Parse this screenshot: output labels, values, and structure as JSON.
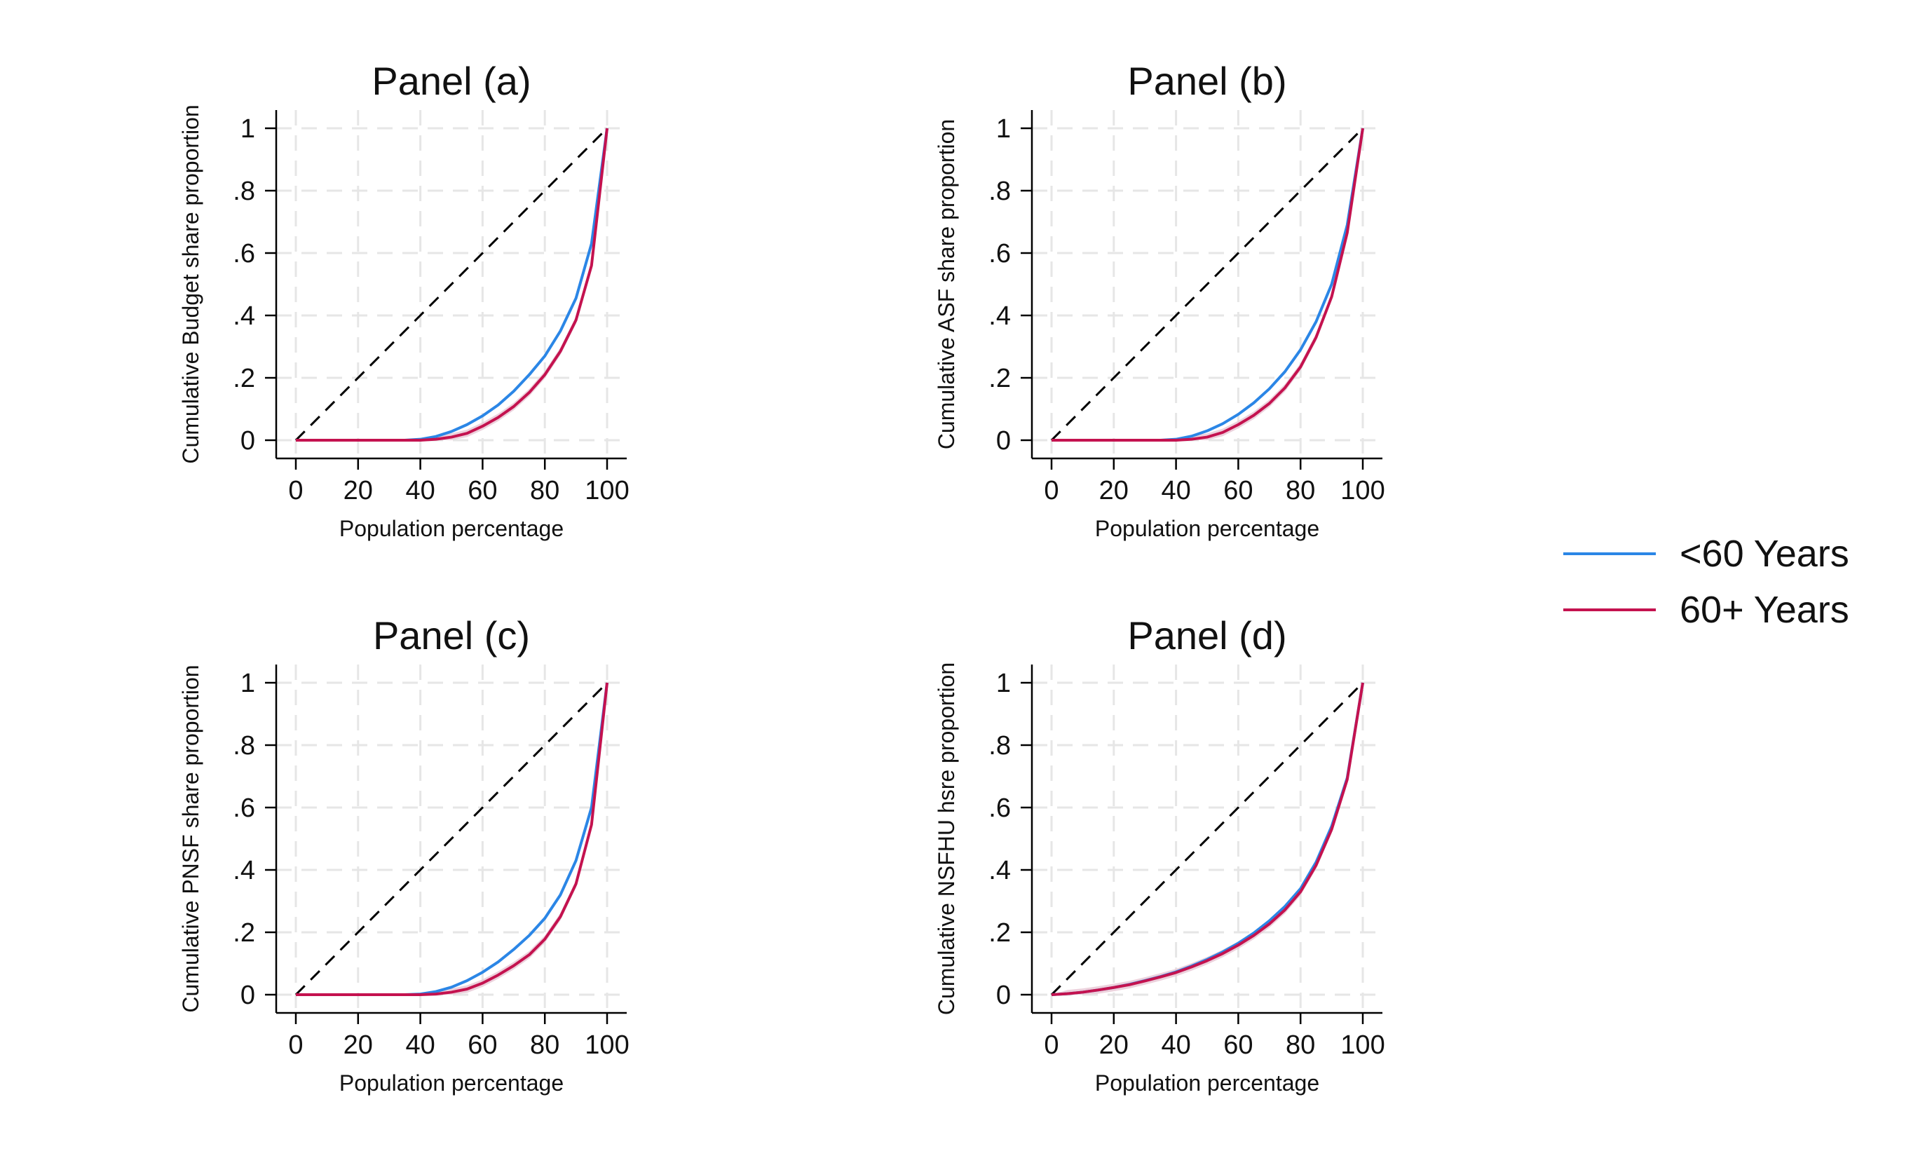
{
  "legend": {
    "under60": "<60 Years",
    "over60": "60+ Years"
  },
  "colors": {
    "under60": "#2b86e6",
    "over60": "#c4124f",
    "band": "#e7c6d3",
    "equality": "#000000",
    "grid": "#e6e6e6"
  },
  "chart_data": [
    {
      "type": "line",
      "title": "Panel (a)",
      "xlabel": "Population percentage",
      "ylabel": "Cumulative Budget share proportion",
      "xlim": [
        0,
        100
      ],
      "ylim": [
        0,
        1
      ],
      "xticks": [
        "0",
        "20",
        "40",
        "60",
        "80",
        "100"
      ],
      "yticks": [
        "0",
        ".2",
        ".4",
        ".6",
        ".8",
        "1"
      ],
      "grid": true,
      "x": [
        0,
        5,
        10,
        15,
        20,
        25,
        30,
        35,
        40,
        45,
        50,
        55,
        60,
        65,
        70,
        75,
        80,
        85,
        90,
        95,
        100
      ],
      "series": [
        {
          "name": "<60 Years",
          "values": [
            0,
            0,
            0,
            0,
            0,
            0,
            0,
            0,
            0.003,
            0.012,
            0.028,
            0.05,
            0.078,
            0.113,
            0.157,
            0.21,
            0.27,
            0.35,
            0.455,
            0.63,
            1.0
          ]
        },
        {
          "name": "60+ Years",
          "values": [
            0,
            0,
            0,
            0,
            0,
            0,
            0,
            0,
            0,
            0.003,
            0.01,
            0.022,
            0.045,
            0.073,
            0.108,
            0.153,
            0.21,
            0.285,
            0.385,
            0.56,
            1.0
          ]
        }
      ]
    },
    {
      "type": "line",
      "title": "Panel (b)",
      "xlabel": "Population percentage",
      "ylabel": "Cumulative ASF share proportion",
      "xlim": [
        0,
        100
      ],
      "ylim": [
        0,
        1
      ],
      "xticks": [
        "0",
        "20",
        "40",
        "60",
        "80",
        "100"
      ],
      "yticks": [
        "0",
        ".2",
        ".4",
        ".6",
        ".8",
        "1"
      ],
      "grid": true,
      "x": [
        0,
        5,
        10,
        15,
        20,
        25,
        30,
        35,
        40,
        45,
        50,
        55,
        60,
        65,
        70,
        75,
        80,
        85,
        90,
        95,
        100
      ],
      "series": [
        {
          "name": "<60 Years",
          "values": [
            0,
            0,
            0,
            0,
            0,
            0,
            0,
            0,
            0.003,
            0.013,
            0.03,
            0.053,
            0.083,
            0.12,
            0.165,
            0.22,
            0.29,
            0.38,
            0.5,
            0.69,
            1.0
          ]
        },
        {
          "name": "60+ Years",
          "values": [
            0,
            0,
            0,
            0,
            0,
            0,
            0,
            0,
            0,
            0.003,
            0.01,
            0.025,
            0.05,
            0.08,
            0.118,
            0.168,
            0.235,
            0.33,
            0.46,
            0.665,
            1.0
          ]
        }
      ]
    },
    {
      "type": "line",
      "title": "Panel (c)",
      "xlabel": "Population percentage",
      "ylabel": "Cumulative PNSF share proportion",
      "xlim": [
        0,
        100
      ],
      "ylim": [
        0,
        1
      ],
      "xticks": [
        "0",
        "20",
        "40",
        "60",
        "80",
        "100"
      ],
      "yticks": [
        "0",
        ".2",
        ".4",
        ".6",
        ".8",
        "1"
      ],
      "grid": true,
      "x": [
        0,
        5,
        10,
        15,
        20,
        25,
        30,
        35,
        40,
        45,
        50,
        55,
        60,
        65,
        70,
        75,
        80,
        85,
        90,
        95,
        100
      ],
      "series": [
        {
          "name": "<60 Years",
          "values": [
            0,
            0,
            0,
            0,
            0,
            0,
            0,
            0,
            0.002,
            0.01,
            0.024,
            0.045,
            0.072,
            0.105,
            0.145,
            0.19,
            0.245,
            0.32,
            0.43,
            0.6,
            1.0
          ]
        },
        {
          "name": "60+ Years",
          "values": [
            0,
            0,
            0,
            0,
            0,
            0,
            0,
            0,
            0,
            0.002,
            0.008,
            0.018,
            0.037,
            0.063,
            0.093,
            0.128,
            0.178,
            0.25,
            0.355,
            0.545,
            1.0
          ]
        }
      ]
    },
    {
      "type": "line",
      "title": "Panel (d)",
      "xlabel": "Population percentage",
      "ylabel": "Cumulative NSFHU hsre proportion",
      "xlim": [
        0,
        100
      ],
      "ylim": [
        0,
        1
      ],
      "xticks": [
        "0",
        "20",
        "40",
        "60",
        "80",
        "100"
      ],
      "yticks": [
        "0",
        ".2",
        ".4",
        ".6",
        ".8",
        "1"
      ],
      "grid": true,
      "x": [
        0,
        5,
        10,
        15,
        20,
        25,
        30,
        35,
        40,
        45,
        50,
        55,
        60,
        65,
        70,
        75,
        80,
        85,
        90,
        95,
        100
      ],
      "series": [
        {
          "name": "<60 Years",
          "values": [
            0,
            0.003,
            0.008,
            0.015,
            0.023,
            0.033,
            0.045,
            0.058,
            0.073,
            0.092,
            0.113,
            0.137,
            0.165,
            0.198,
            0.237,
            0.283,
            0.34,
            0.425,
            0.54,
            0.695,
            1.0
          ]
        },
        {
          "name": "60+ Years",
          "values": [
            0,
            0.003,
            0.008,
            0.015,
            0.023,
            0.032,
            0.044,
            0.057,
            0.071,
            0.089,
            0.109,
            0.132,
            0.159,
            0.19,
            0.227,
            0.272,
            0.33,
            0.415,
            0.53,
            0.69,
            1.0
          ]
        }
      ]
    }
  ]
}
